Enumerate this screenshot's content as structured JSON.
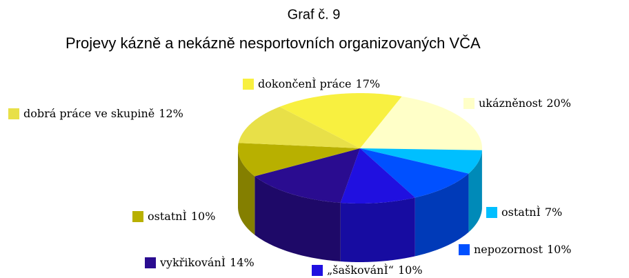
{
  "chart_data": {
    "type": "pie3d",
    "title": "Graf č. 9",
    "subtitle": "Projevy kázně a nekázně nesportovních organizovaných VČA",
    "categories": [
      "ukázněnost",
      "ostatnÌ",
      "nepozornost",
      "„šaškovánÌ“",
      "vykřikovánÌ",
      "ostatnÌ",
      "dobrá práce ve skupině",
      "dokončenÌ práce"
    ],
    "values": [
      20,
      7,
      10,
      10,
      14,
      10,
      12,
      17
    ],
    "value_labels": [
      "20%",
      "7%",
      "10%",
      "10%",
      "14%",
      "10%",
      "12%",
      "17%"
    ],
    "colors": [
      "#ffffc8",
      "#00bfff",
      "#0050ff",
      "#2010e0",
      "#2a0c90",
      "#b8b000",
      "#e8e048",
      "#f8f040"
    ]
  }
}
